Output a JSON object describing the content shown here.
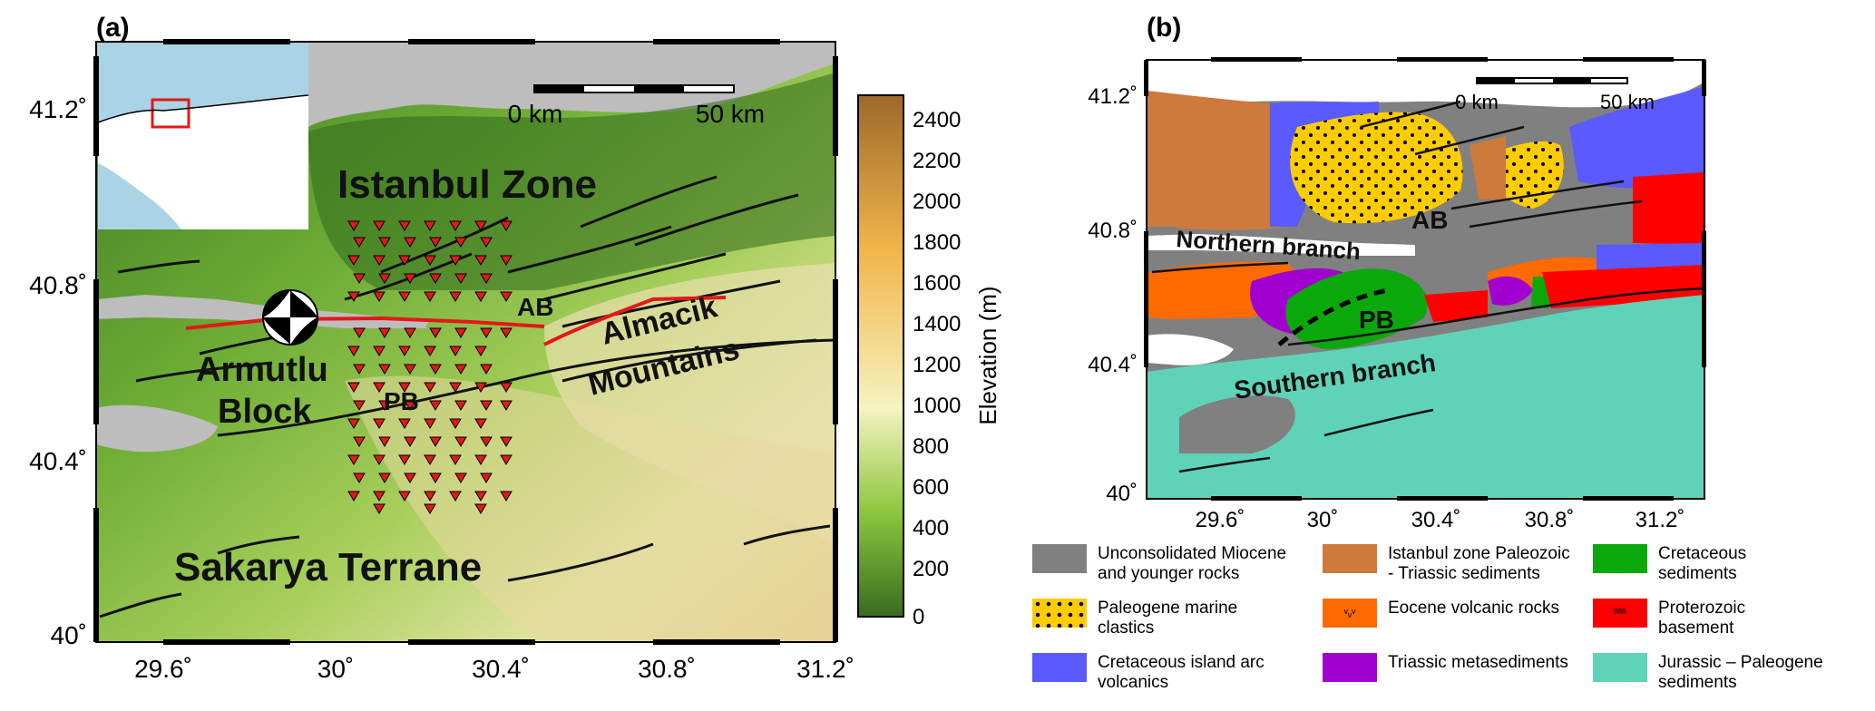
{
  "panel_a": {
    "label": "(a)",
    "lat_ticks": [
      "41.2˚",
      "40.8˚",
      "40.4˚",
      "40˚"
    ],
    "lon_ticks": [
      "29.6˚",
      "30˚",
      "30.4˚",
      "30.8˚",
      "31.2˚"
    ],
    "scale_start": "0 km",
    "scale_end": "50 km",
    "labels": {
      "istanbul_zone": "Istanbul Zone",
      "armutlu": "Armutlu",
      "block": "Block",
      "almacik": "Almacik",
      "mountains": "Mountains",
      "ab": "AB",
      "pb": "PB",
      "sakarya": "Sakarya Terrane"
    },
    "colorbar": {
      "title": "Elevation (m)",
      "ticks": [
        "2400",
        "2200",
        "2000",
        "1800",
        "1600",
        "1400",
        "1200",
        "1000",
        "800",
        "600",
        "400",
        "200",
        "0"
      ],
      "colors": {
        "low": "#3a6b1e",
        "mid_low": "#8dc63f",
        "mid": "#f5f3c0",
        "mid_high": "#f2b64b",
        "high": "#9c6a2a"
      }
    }
  },
  "panel_b": {
    "label": "(b)",
    "lat_ticks": [
      "41.2˚",
      "40.8˚",
      "40.4˚",
      "40˚"
    ],
    "lon_ticks": [
      "29.6˚",
      "30˚",
      "30.4˚",
      "30.8˚",
      "31.2˚"
    ],
    "scale_start": "0 km",
    "scale_end": "50 km",
    "labels": {
      "northern_branch": "Northern branch",
      "southern_branch": "Southern branch",
      "ab": "AB",
      "pb": "PB"
    }
  },
  "legend": [
    {
      "label": "Unconsolidated Miocene\nand younger rocks",
      "color": "#808080",
      "pattern": "none"
    },
    {
      "label": "Istanbul zone Paleozoic\n- Triassic sediments",
      "color": "#cd7a3c",
      "pattern": "none"
    },
    {
      "label": "Cretaceous\nsediments",
      "color": "#0aa80a",
      "pattern": "none"
    },
    {
      "label": "Paleogene marine\nclastics",
      "color": "#ffcc00",
      "pattern": "dots"
    },
    {
      "label": "Eocene volcanic rocks",
      "color": "#ff6a00",
      "pattern": "v"
    },
    {
      "label": "Proterozoic\nbasement",
      "color": "#ff0000",
      "pattern": "b"
    },
    {
      "label": "Cretaceous island arc\nvolcanics",
      "color": "#5a5aff",
      "pattern": "none"
    },
    {
      "label": "Triassic metasediments",
      "color": "#a000d0",
      "pattern": "none"
    },
    {
      "label": "Jurassic – Paleogene\nsediments",
      "color": "#5fd3b8",
      "pattern": "none"
    }
  ]
}
